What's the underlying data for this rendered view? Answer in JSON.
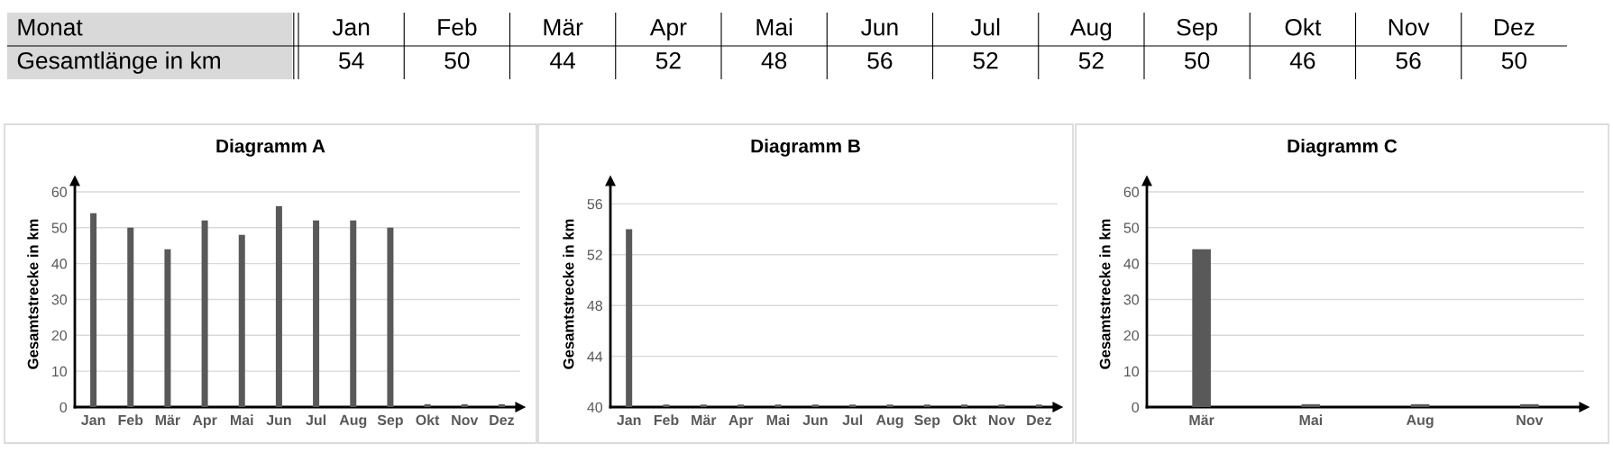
{
  "chart_data": [
    {
      "type": "other",
      "xlabel": "Monat",
      "ylabel": "Gesamtlänge in km",
      "categories": [
        "Jan",
        "Feb",
        "Mär",
        "Apr",
        "Mai",
        "Jun",
        "Jul",
        "Aug",
        "Sep",
        "Okt",
        "Nov",
        "Dez"
      ],
      "values": [
        54,
        50,
        44,
        52,
        48,
        56,
        52,
        52,
        50,
        46,
        56,
        50
      ],
      "data_labels": true
    },
    {
      "type": "bar",
      "title": "Diagramm A",
      "ylabel": "Gesamtstrecke in km",
      "categories": [
        "Jan",
        "Feb",
        "Mär",
        "Apr",
        "Mai",
        "Jun",
        "Jul",
        "Aug",
        "Sep",
        "Okt",
        "Nov",
        "Dez"
      ],
      "values": [
        54,
        50,
        44,
        52,
        48,
        56,
        52,
        52,
        50,
        0.8,
        0.8,
        0.8
      ],
      "color": "#595959",
      "ylim": [
        0,
        63
      ],
      "yticks": [
        0,
        10,
        20,
        30,
        40,
        50,
        60
      ],
      "grid": "y"
    },
    {
      "type": "bar",
      "title": "Diagramm B",
      "ylabel": "Gesamtstrecke in km",
      "categories": [
        "Jan",
        "Feb",
        "Mär",
        "Apr",
        "Mai",
        "Jun",
        "Jul",
        "Aug",
        "Sep",
        "Okt",
        "Nov",
        "Dez"
      ],
      "values": [
        54,
        40.2,
        40.2,
        40.2,
        40.2,
        40.2,
        40.2,
        40.2,
        40.2,
        40.2,
        40.2,
        40.2
      ],
      "color": "#595959",
      "ylim": [
        40,
        57.8
      ],
      "yticks": [
        40,
        44,
        48,
        52,
        56
      ],
      "grid": "y"
    },
    {
      "type": "bar",
      "title": "Diagramm C",
      "ylabel": "Gesamtstrecke in km",
      "categories": [
        "Mär",
        "Mai",
        "Aug",
        "Nov"
      ],
      "values": [
        44,
        0.8,
        0.8,
        0.8
      ],
      "color": "#595959",
      "ylim": [
        0,
        63
      ],
      "yticks": [
        0,
        10,
        20,
        30,
        40,
        50,
        60
      ],
      "grid": "y"
    }
  ]
}
